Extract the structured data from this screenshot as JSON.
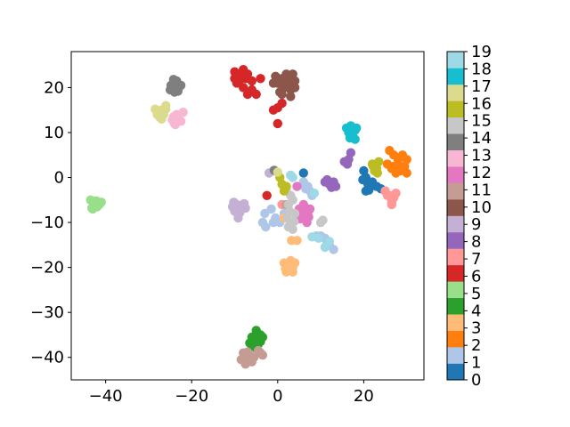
{
  "chart_data": {
    "type": "scatter",
    "title": "",
    "xlabel": "",
    "ylabel": "",
    "xlim": [
      -48,
      34
    ],
    "ylim": [
      -45,
      28
    ],
    "xticks": [
      -40,
      -20,
      0,
      20
    ],
    "yticks": [
      -40,
      -30,
      -20,
      -10,
      0,
      10,
      20
    ],
    "grid": false,
    "colorbar": {
      "min": 0,
      "max": 19,
      "ticks": [
        0,
        1,
        2,
        3,
        4,
        5,
        6,
        7,
        8,
        9,
        10,
        11,
        12,
        13,
        14,
        15,
        16,
        17,
        18,
        19
      ],
      "colors": [
        "#1f77b4",
        "#aec7e8",
        "#ff7f0e",
        "#ffbb78",
        "#2ca02c",
        "#98df8a",
        "#d62728",
        "#ff9896",
        "#9467bd",
        "#c5b0d5",
        "#8c564b",
        "#c49c94",
        "#e377c2",
        "#f7b6d2",
        "#7f7f7f",
        "#c7c7c7",
        "#bcbd22",
        "#dbdb8d",
        "#17becf",
        "#9edae5"
      ]
    },
    "clusters": [
      {
        "label": 0,
        "points": [
          [
            20,
            1.5
          ],
          [
            20.5,
            0
          ],
          [
            21,
            -1.5
          ],
          [
            20.5,
            -3
          ],
          [
            21.5,
            -2
          ],
          [
            22,
            -1
          ],
          [
            23,
            -2
          ],
          [
            24,
            -2.5
          ],
          [
            25,
            -3
          ],
          [
            19.8,
            -0.5
          ],
          [
            21.2,
            -2.8
          ],
          [
            7,
            -7
          ],
          [
            6,
            1
          ]
        ]
      },
      {
        "label": 1,
        "points": [
          [
            -3,
            -8
          ],
          [
            -3.5,
            -10
          ],
          [
            -2.8,
            -11
          ],
          [
            -1.5,
            -7
          ],
          [
            -0.5,
            -9
          ],
          [
            0.5,
            -10
          ],
          [
            1.5,
            -8
          ],
          [
            -1,
            -10
          ],
          [
            7,
            -2
          ],
          [
            7.5,
            -3
          ],
          [
            8,
            -4
          ],
          [
            6.5,
            -2.5
          ],
          [
            10,
            -13
          ],
          [
            11,
            -13.5
          ],
          [
            12,
            -15
          ],
          [
            13,
            -16
          ],
          [
            11.5,
            -14.5
          ],
          [
            9,
            -13
          ],
          [
            5,
            -7
          ],
          [
            2,
            -3
          ],
          [
            6,
            -1
          ]
        ]
      },
      {
        "label": 2,
        "points": [
          [
            26,
            6
          ],
          [
            27,
            5
          ],
          [
            28,
            4
          ],
          [
            29,
            5
          ],
          [
            30,
            4
          ],
          [
            29.5,
            2.5
          ],
          [
            28.5,
            1.5
          ],
          [
            27.5,
            1
          ],
          [
            26.5,
            2
          ],
          [
            25.5,
            3
          ],
          [
            30,
            1
          ],
          [
            28,
            3
          ],
          [
            27,
            2.5
          ]
        ]
      },
      {
        "label": 3,
        "points": [
          [
            1.5,
            -19
          ],
          [
            2.5,
            -19.5
          ],
          [
            3.5,
            -20
          ],
          [
            2,
            -21
          ],
          [
            1.8,
            -20.3
          ],
          [
            3,
            -18.5
          ],
          [
            4,
            -19
          ],
          [
            3.5,
            -21
          ],
          [
            2.2,
            -20
          ],
          [
            3.2,
            -14
          ],
          [
            4.5,
            -14
          ],
          [
            1.5,
            -9
          ]
        ]
      },
      {
        "label": 4,
        "points": [
          [
            -5,
            -34
          ],
          [
            -4,
            -35
          ],
          [
            -6,
            -35.5
          ],
          [
            -5.5,
            -36
          ],
          [
            -4.5,
            -37
          ],
          [
            -6,
            -37.5
          ],
          [
            -5,
            -38
          ],
          [
            -4,
            -36.5
          ],
          [
            -3.5,
            -35.5
          ],
          [
            -6.5,
            -36.8
          ],
          [
            -5.2,
            -36.5
          ]
        ]
      },
      {
        "label": 5,
        "points": [
          [
            -43.5,
            -5
          ],
          [
            -42.5,
            -5.5
          ],
          [
            -42,
            -6.5
          ],
          [
            -43,
            -7
          ],
          [
            -41.5,
            -6
          ],
          [
            -42.8,
            -6.2
          ],
          [
            -41,
            -5.5
          ],
          [
            -43.2,
            -6.8
          ],
          [
            -42.2,
            -5.2
          ]
        ]
      },
      {
        "label": 6,
        "points": [
          [
            -10,
            22
          ],
          [
            -9,
            23
          ],
          [
            -8,
            24
          ],
          [
            -7,
            23
          ],
          [
            -9.5,
            21
          ],
          [
            -8.5,
            22.5
          ],
          [
            -10,
            23.5
          ],
          [
            -7.5,
            22
          ],
          [
            -6,
            21.5
          ],
          [
            -4,
            22
          ],
          [
            -6,
            19.5
          ],
          [
            -5,
            18.5
          ],
          [
            -7,
            18.5
          ],
          [
            -9,
            21.5
          ],
          [
            -8,
            20
          ],
          [
            -1,
            15
          ],
          [
            0,
            15.5
          ],
          [
            1,
            16.5
          ],
          [
            0,
            12
          ],
          [
            -2.5,
            -4
          ]
        ]
      },
      {
        "label": 7,
        "points": [
          [
            25,
            -3
          ],
          [
            26,
            -4
          ],
          [
            27,
            -4.5
          ],
          [
            26.5,
            -5.5
          ],
          [
            25.5,
            -4
          ],
          [
            27.5,
            -3.5
          ],
          [
            26.5,
            -6
          ],
          [
            1,
            -6
          ]
        ]
      },
      {
        "label": 8,
        "points": [
          [
            11,
            -1
          ],
          [
            12,
            -1.5
          ],
          [
            13,
            -1
          ],
          [
            12.5,
            -2.2
          ],
          [
            11.5,
            -0.5
          ],
          [
            13.5,
            -2
          ],
          [
            16.5,
            4
          ],
          [
            17,
            5.5
          ],
          [
            16.2,
            3
          ],
          [
            15.5,
            3.5
          ]
        ]
      },
      {
        "label": 9,
        "points": [
          [
            -10.5,
            -6.5
          ],
          [
            -9.5,
            -6
          ],
          [
            -8.5,
            -6.2
          ],
          [
            -7.5,
            -6.8
          ],
          [
            -10,
            -7.5
          ],
          [
            -8.8,
            -7.8
          ],
          [
            -9.2,
            -9
          ],
          [
            -7.8,
            -5.8
          ],
          [
            -10.2,
            -5.5
          ],
          [
            -1,
            1.5
          ],
          [
            -2,
            1
          ]
        ]
      },
      {
        "label": 10,
        "points": [
          [
            0,
            21
          ],
          [
            1,
            22
          ],
          [
            2,
            23
          ],
          [
            3,
            22
          ],
          [
            2.5,
            21
          ],
          [
            1.5,
            20
          ],
          [
            0.5,
            19
          ],
          [
            -1,
            21
          ],
          [
            3.5,
            23
          ],
          [
            4,
            21.5
          ],
          [
            2,
            20.5
          ],
          [
            1,
            18.5
          ],
          [
            3,
            19.5
          ],
          [
            4,
            20
          ],
          [
            -0.5,
            22.5
          ],
          [
            2,
            22
          ],
          [
            3,
            18
          ]
        ]
      },
      {
        "label": 11,
        "points": [
          [
            -8,
            -39
          ],
          [
            -7,
            -40
          ],
          [
            -6,
            -41
          ],
          [
            -7.5,
            -41.5
          ],
          [
            -6.5,
            -39.5
          ],
          [
            -8.5,
            -40.5
          ],
          [
            -5.5,
            -40
          ],
          [
            -4,
            -39
          ],
          [
            -3.5,
            -39.5
          ],
          [
            -4.5,
            -38.5
          ],
          [
            -7,
            -38.8
          ],
          [
            2,
            -6
          ]
        ]
      },
      {
        "label": 12,
        "points": [
          [
            5,
            -7
          ],
          [
            6,
            -7.5
          ],
          [
            7,
            -8
          ],
          [
            6.5,
            -9
          ],
          [
            5.5,
            -8.5
          ],
          [
            7.5,
            -7
          ],
          [
            6,
            -6
          ],
          [
            5.2,
            -9.2
          ],
          [
            6.8,
            -10
          ],
          [
            5.8,
            -7.8
          ],
          [
            7.2,
            -8.8
          ],
          [
            4.5,
            -2
          ]
        ]
      },
      {
        "label": 13,
        "points": [
          [
            -24,
            12
          ],
          [
            -23,
            13
          ],
          [
            -22,
            14.5
          ],
          [
            -23.5,
            14
          ],
          [
            -24.5,
            12.8
          ],
          [
            -22.5,
            12.5
          ],
          [
            -23.8,
            11.8
          ],
          [
            -24.2,
            13.5
          ]
        ]
      },
      {
        "label": 14,
        "points": [
          [
            -24,
            21
          ],
          [
            -23,
            20
          ],
          [
            -25,
            19.5
          ],
          [
            -24,
            19
          ],
          [
            -23.5,
            21.5
          ],
          [
            -22.5,
            20.5
          ],
          [
            -24.8,
            20.5
          ],
          [
            -23.2,
            19.2
          ],
          [
            -24.2,
            21.8
          ],
          [
            -0.8,
            1.6
          ]
        ]
      },
      {
        "label": 15,
        "points": [
          [
            2,
            -3
          ],
          [
            3,
            -4
          ],
          [
            2.5,
            -6
          ],
          [
            3.5,
            -5
          ],
          [
            2.2,
            -9
          ],
          [
            3,
            -10
          ],
          [
            3.5,
            -11.5
          ],
          [
            2.5,
            -11
          ],
          [
            4,
            -8
          ],
          [
            3.8,
            -9.8
          ],
          [
            2.8,
            -7.5
          ],
          [
            10,
            -10
          ],
          [
            10.5,
            -9.5
          ],
          [
            3,
            0.5
          ]
        ]
      },
      {
        "label": 16,
        "points": [
          [
            22,
            3
          ],
          [
            23,
            2
          ],
          [
            23.5,
            3.5
          ],
          [
            22.5,
            1.5
          ],
          [
            22.2,
            2.5
          ],
          [
            23.2,
            1
          ],
          [
            0.5,
            0
          ],
          [
            1,
            -1.5
          ],
          [
            1.5,
            -3
          ],
          [
            2,
            -2
          ]
        ]
      },
      {
        "label": 17,
        "points": [
          [
            -28,
            14
          ],
          [
            -27,
            15
          ],
          [
            -26,
            16
          ],
          [
            -27.5,
            13.5
          ],
          [
            -26.5,
            14
          ],
          [
            -28.5,
            15.2
          ],
          [
            -27,
            13
          ],
          [
            -26,
            15.2
          ],
          [
            0,
            1.2
          ]
        ]
      },
      {
        "label": 18,
        "points": [
          [
            16,
            11
          ],
          [
            17,
            11.5
          ],
          [
            18,
            10.5
          ],
          [
            17.5,
            9
          ],
          [
            18,
            8.5
          ],
          [
            16.5,
            10
          ],
          [
            17.2,
            9.6
          ],
          [
            18.3,
            11
          ],
          [
            16.8,
            8.8
          ]
        ]
      },
      {
        "label": 19,
        "points": [
          [
            3,
            0.5
          ],
          [
            3.5,
            0
          ],
          [
            8,
            -13.2
          ],
          [
            9.5,
            -13.5
          ],
          [
            11,
            -15.5
          ],
          [
            12,
            -14.2
          ],
          [
            8.5,
            -3.5
          ]
        ]
      }
    ]
  }
}
